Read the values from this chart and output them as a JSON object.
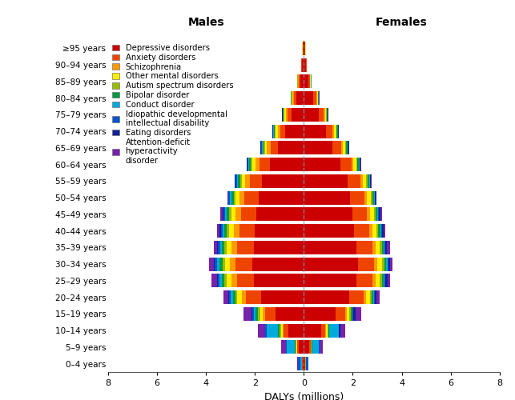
{
  "age_groups": [
    "≥95 years",
    "90–94 years",
    "85–89 years",
    "80–84 years",
    "75–79 years",
    "70–74 years",
    "65–69 years",
    "60–64 years",
    "55–59 years",
    "50–54 years",
    "45–49 years",
    "40–44 years",
    "35–39 years",
    "30–34 years",
    "25–29 years",
    "20–24 years",
    "15–19 years",
    "10–14 years",
    "5–9 years",
    "0–4 years"
  ],
  "disorders": [
    "Depressive disorders",
    "Anxiety disorders",
    "Schizophrenia",
    "Other mental disorders",
    "Autism spectrum disorders",
    "Bipolar disorder",
    "Conduct disorder",
    "Idiopathic developmental\nintellectual disability",
    "Eating disorders",
    "Attention-deficit\nhyperactivity\ndisorder"
  ],
  "colors": [
    "#cc0000",
    "#ee4400",
    "#ff9900",
    "#ffee00",
    "#99bb00",
    "#009944",
    "#00aadd",
    "#0055cc",
    "#112299",
    "#7722aa"
  ],
  "males": [
    [
      0.04,
      0.015,
      0.005,
      0.003,
      0.002,
      0.002,
      0.001,
      0.001,
      0.0005,
      0.0005
    ],
    [
      0.07,
      0.025,
      0.01,
      0.007,
      0.003,
      0.004,
      0.001,
      0.002,
      0.001,
      0.001
    ],
    [
      0.15,
      0.055,
      0.03,
      0.018,
      0.008,
      0.009,
      0.004,
      0.006,
      0.002,
      0.002
    ],
    [
      0.3,
      0.1,
      0.055,
      0.035,
      0.015,
      0.018,
      0.008,
      0.012,
      0.004,
      0.004
    ],
    [
      0.5,
      0.16,
      0.08,
      0.055,
      0.025,
      0.028,
      0.013,
      0.018,
      0.006,
      0.006
    ],
    [
      0.75,
      0.22,
      0.105,
      0.075,
      0.035,
      0.038,
      0.018,
      0.025,
      0.008,
      0.009
    ],
    [
      1.05,
      0.32,
      0.135,
      0.095,
      0.045,
      0.048,
      0.028,
      0.038,
      0.013,
      0.013
    ],
    [
      1.4,
      0.42,
      0.16,
      0.12,
      0.06,
      0.065,
      0.038,
      0.048,
      0.018,
      0.018
    ],
    [
      1.7,
      0.51,
      0.185,
      0.14,
      0.073,
      0.075,
      0.048,
      0.058,
      0.023,
      0.022
    ],
    [
      1.85,
      0.57,
      0.205,
      0.158,
      0.082,
      0.085,
      0.058,
      0.068,
      0.028,
      0.027
    ],
    [
      1.95,
      0.62,
      0.215,
      0.17,
      0.092,
      0.095,
      0.068,
      0.075,
      0.032,
      0.095
    ],
    [
      2.0,
      0.645,
      0.225,
      0.18,
      0.095,
      0.098,
      0.075,
      0.082,
      0.038,
      0.115
    ],
    [
      2.05,
      0.665,
      0.235,
      0.19,
      0.1,
      0.103,
      0.085,
      0.088,
      0.038,
      0.135
    ],
    [
      2.1,
      0.685,
      0.245,
      0.2,
      0.105,
      0.108,
      0.095,
      0.095,
      0.038,
      0.19
    ],
    [
      2.05,
      0.665,
      0.235,
      0.19,
      0.102,
      0.105,
      0.088,
      0.088,
      0.038,
      0.21
    ],
    [
      1.75,
      0.61,
      0.185,
      0.17,
      0.095,
      0.096,
      0.075,
      0.075,
      0.048,
      0.195
    ],
    [
      1.15,
      0.42,
      0.11,
      0.112,
      0.085,
      0.085,
      0.065,
      0.065,
      0.048,
      0.335
    ],
    [
      0.65,
      0.185,
      0.035,
      0.065,
      0.065,
      0.048,
      0.47,
      0.055,
      0.018,
      0.285
    ],
    [
      0.2,
      0.072,
      0.008,
      0.018,
      0.055,
      0.018,
      0.33,
      0.038,
      0.008,
      0.185
    ],
    [
      0.045,
      0.018,
      0.004,
      0.004,
      0.018,
      0.004,
      0.038,
      0.095,
      0.004,
      0.038
    ]
  ],
  "females": [
    [
      0.045,
      0.018,
      0.006,
      0.004,
      0.002,
      0.004,
      0.001,
      0.001,
      0.002,
      0.001
    ],
    [
      0.075,
      0.028,
      0.008,
      0.007,
      0.002,
      0.004,
      0.001,
      0.002,
      0.004,
      0.001
    ],
    [
      0.185,
      0.065,
      0.015,
      0.018,
      0.006,
      0.009,
      0.002,
      0.003,
      0.008,
      0.002
    ],
    [
      0.38,
      0.12,
      0.032,
      0.038,
      0.012,
      0.018,
      0.005,
      0.007,
      0.014,
      0.003
    ],
    [
      0.62,
      0.188,
      0.052,
      0.058,
      0.018,
      0.028,
      0.008,
      0.011,
      0.018,
      0.005
    ],
    [
      0.92,
      0.26,
      0.062,
      0.075,
      0.025,
      0.038,
      0.012,
      0.014,
      0.022,
      0.007
    ],
    [
      1.18,
      0.355,
      0.072,
      0.095,
      0.035,
      0.048,
      0.016,
      0.018,
      0.028,
      0.009
    ],
    [
      1.5,
      0.45,
      0.082,
      0.115,
      0.045,
      0.058,
      0.02,
      0.023,
      0.032,
      0.011
    ],
    [
      1.8,
      0.52,
      0.092,
      0.132,
      0.055,
      0.068,
      0.023,
      0.026,
      0.038,
      0.013
    ],
    [
      1.9,
      0.57,
      0.102,
      0.152,
      0.065,
      0.075,
      0.026,
      0.028,
      0.048,
      0.017
    ],
    [
      2.0,
      0.59,
      0.112,
      0.162,
      0.065,
      0.075,
      0.028,
      0.028,
      0.058,
      0.068
    ],
    [
      2.05,
      0.62,
      0.122,
      0.172,
      0.072,
      0.085,
      0.03,
      0.03,
      0.068,
      0.088
    ],
    [
      2.15,
      0.645,
      0.13,
      0.182,
      0.075,
      0.088,
      0.032,
      0.032,
      0.072,
      0.105
    ],
    [
      2.2,
      0.668,
      0.138,
      0.192,
      0.082,
      0.095,
      0.035,
      0.035,
      0.075,
      0.115
    ],
    [
      2.15,
      0.645,
      0.13,
      0.182,
      0.075,
      0.088,
      0.033,
      0.033,
      0.075,
      0.115
    ],
    [
      1.85,
      0.59,
      0.092,
      0.162,
      0.065,
      0.075,
      0.028,
      0.028,
      0.088,
      0.115
    ],
    [
      1.3,
      0.395,
      0.052,
      0.115,
      0.055,
      0.058,
      0.023,
      0.023,
      0.105,
      0.21
    ],
    [
      0.72,
      0.168,
      0.015,
      0.058,
      0.045,
      0.038,
      0.375,
      0.018,
      0.058,
      0.21
    ],
    [
      0.21,
      0.065,
      0.004,
      0.014,
      0.038,
      0.014,
      0.265,
      0.018,
      0.018,
      0.132
    ],
    [
      0.038,
      0.014,
      0.002,
      0.002,
      0.014,
      0.002,
      0.028,
      0.075,
      0.002,
      0.023
    ]
  ],
  "title_males": "Males",
  "title_females": "Females",
  "xlabel": "DALYs (millions)",
  "xlim": 8,
  "bar_height": 0.82,
  "background_color": "#ffffff",
  "legend_fontsize": 7.2,
  "axis_fontsize": 9
}
